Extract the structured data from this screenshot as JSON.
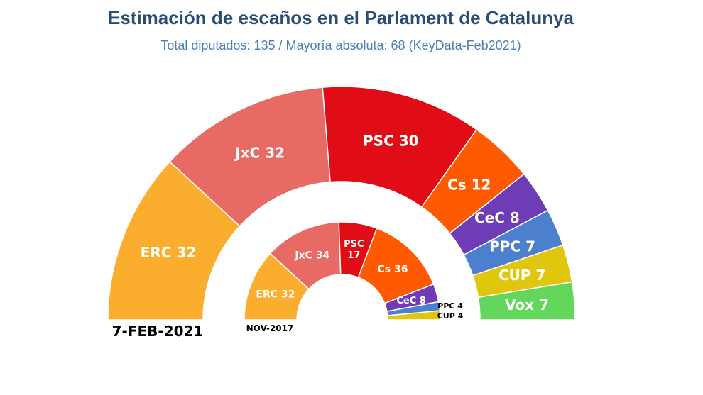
{
  "chart_data": {
    "type": "parliament",
    "title": "Estimación de escaños en el Parlament de Catalunya",
    "subtitle": "Total diputados: 135 / Mayoría absoluta: 68 (KeyData-Feb2021)",
    "total_seats": 135,
    "series": [
      {
        "name": "7-FEB-2021",
        "label": "7-FEB-2021",
        "parties": [
          {
            "party": "ERC",
            "seats": 32,
            "label": "ERC 32",
            "color": "#FBAE2E"
          },
          {
            "party": "JxC",
            "seats": 32,
            "label": "JxC 32",
            "color": "#E86A65"
          },
          {
            "party": "PSC",
            "seats": 30,
            "label": "PSC 30",
            "color": "#E00C16"
          },
          {
            "party": "Cs",
            "seats": 12,
            "label": "Cs 12",
            "color": "#FF5A00"
          },
          {
            "party": "CeC",
            "seats": 8,
            "label": "CeC 8",
            "color": "#6E3CB5"
          },
          {
            "party": "PPC",
            "seats": 7,
            "label": "PPC 7",
            "color": "#4D7FCF"
          },
          {
            "party": "CUP",
            "seats": 7,
            "label": "CUP 7",
            "color": "#E0C70E"
          },
          {
            "party": "Vox",
            "seats": 7,
            "label": "Vox 7",
            "color": "#63D75C"
          }
        ]
      },
      {
        "name": "NOV-2017",
        "label": "NOV-2017",
        "parties": [
          {
            "party": "ERC",
            "seats": 32,
            "label": "ERC 32",
            "color": "#FBAE2E"
          },
          {
            "party": "JxC",
            "seats": 34,
            "label": "JxC 34",
            "color": "#E86A65"
          },
          {
            "party": "PSC",
            "seats": 17,
            "label": "PSC\n17",
            "color": "#E00C16"
          },
          {
            "party": "Cs",
            "seats": 36,
            "label": "Cs 36",
            "color": "#FF5A00"
          },
          {
            "party": "CeC",
            "seats": 8,
            "label": "CeC 8",
            "color": "#6E3CB5"
          },
          {
            "party": "PPC",
            "seats": 4,
            "label": "PPC 4",
            "color": "#4D7FCF"
          },
          {
            "party": "CUP",
            "seats": 4,
            "label": "CUP 4",
            "color": "#E0C70E"
          }
        ]
      }
    ]
  }
}
